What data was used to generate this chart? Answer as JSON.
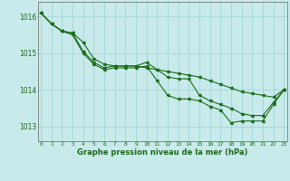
{
  "title": "Graphe pression niveau de la mer (hPa)",
  "background_color": "#c8eaea",
  "line_color": "#1a6b1a",
  "grid_color": "#a8d8d8",
  "ylim": [
    1012.6,
    1016.4
  ],
  "yticks": [
    1013,
    1014,
    1015,
    1016
  ],
  "x_labels": [
    "0",
    "1",
    "2",
    "3",
    "4",
    "5",
    "6",
    "7",
    "8",
    "9",
    "10",
    "11",
    "12",
    "13",
    "14",
    "15",
    "16",
    "17",
    "18",
    "19",
    "20",
    "21",
    "22",
    "23"
  ],
  "series": {
    "line1": [
      1016.1,
      1015.8,
      1015.6,
      1015.55,
      1015.3,
      1014.85,
      1014.7,
      1014.65,
      1014.65,
      1014.65,
      1014.6,
      1014.55,
      1014.5,
      1014.45,
      1014.4,
      1014.35,
      1014.25,
      1014.15,
      1014.05,
      1013.95,
      1013.9,
      1013.85,
      1013.8,
      1014.0
    ],
    "line2": [
      1016.1,
      1015.8,
      1015.6,
      1015.55,
      1015.05,
      1014.75,
      1014.6,
      1014.65,
      1014.65,
      1014.65,
      1014.75,
      1014.55,
      1014.35,
      1014.3,
      1014.3,
      1013.85,
      1013.7,
      1013.6,
      1013.5,
      1013.35,
      1013.3,
      1013.3,
      1013.65,
      1014.0
    ],
    "line3": [
      1016.1,
      1015.8,
      1015.6,
      1015.5,
      1015.0,
      1014.7,
      1014.55,
      1014.6,
      1014.6,
      1014.6,
      1014.65,
      1014.25,
      1013.85,
      1013.75,
      1013.75,
      1013.7,
      1013.55,
      1013.45,
      1013.1,
      1013.15,
      1013.15,
      1013.15,
      1013.6,
      1014.0
    ]
  }
}
